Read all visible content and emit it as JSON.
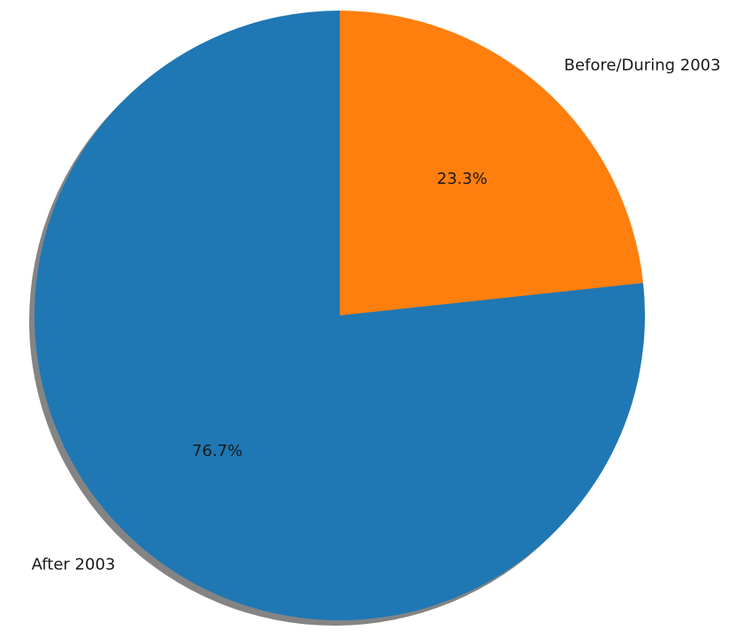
{
  "chart_data": {
    "type": "pie",
    "slices": [
      {
        "label": "Before/During 2003",
        "value": 23.3,
        "pct_label": "23.3%",
        "color": "#ff7f0e"
      },
      {
        "label": "After 2003",
        "value": 76.7,
        "pct_label": "76.7%",
        "color": "#1f77b4"
      }
    ],
    "start_angle_deg": 90,
    "direction": "clockwise",
    "shadow": true,
    "legend": "none"
  }
}
